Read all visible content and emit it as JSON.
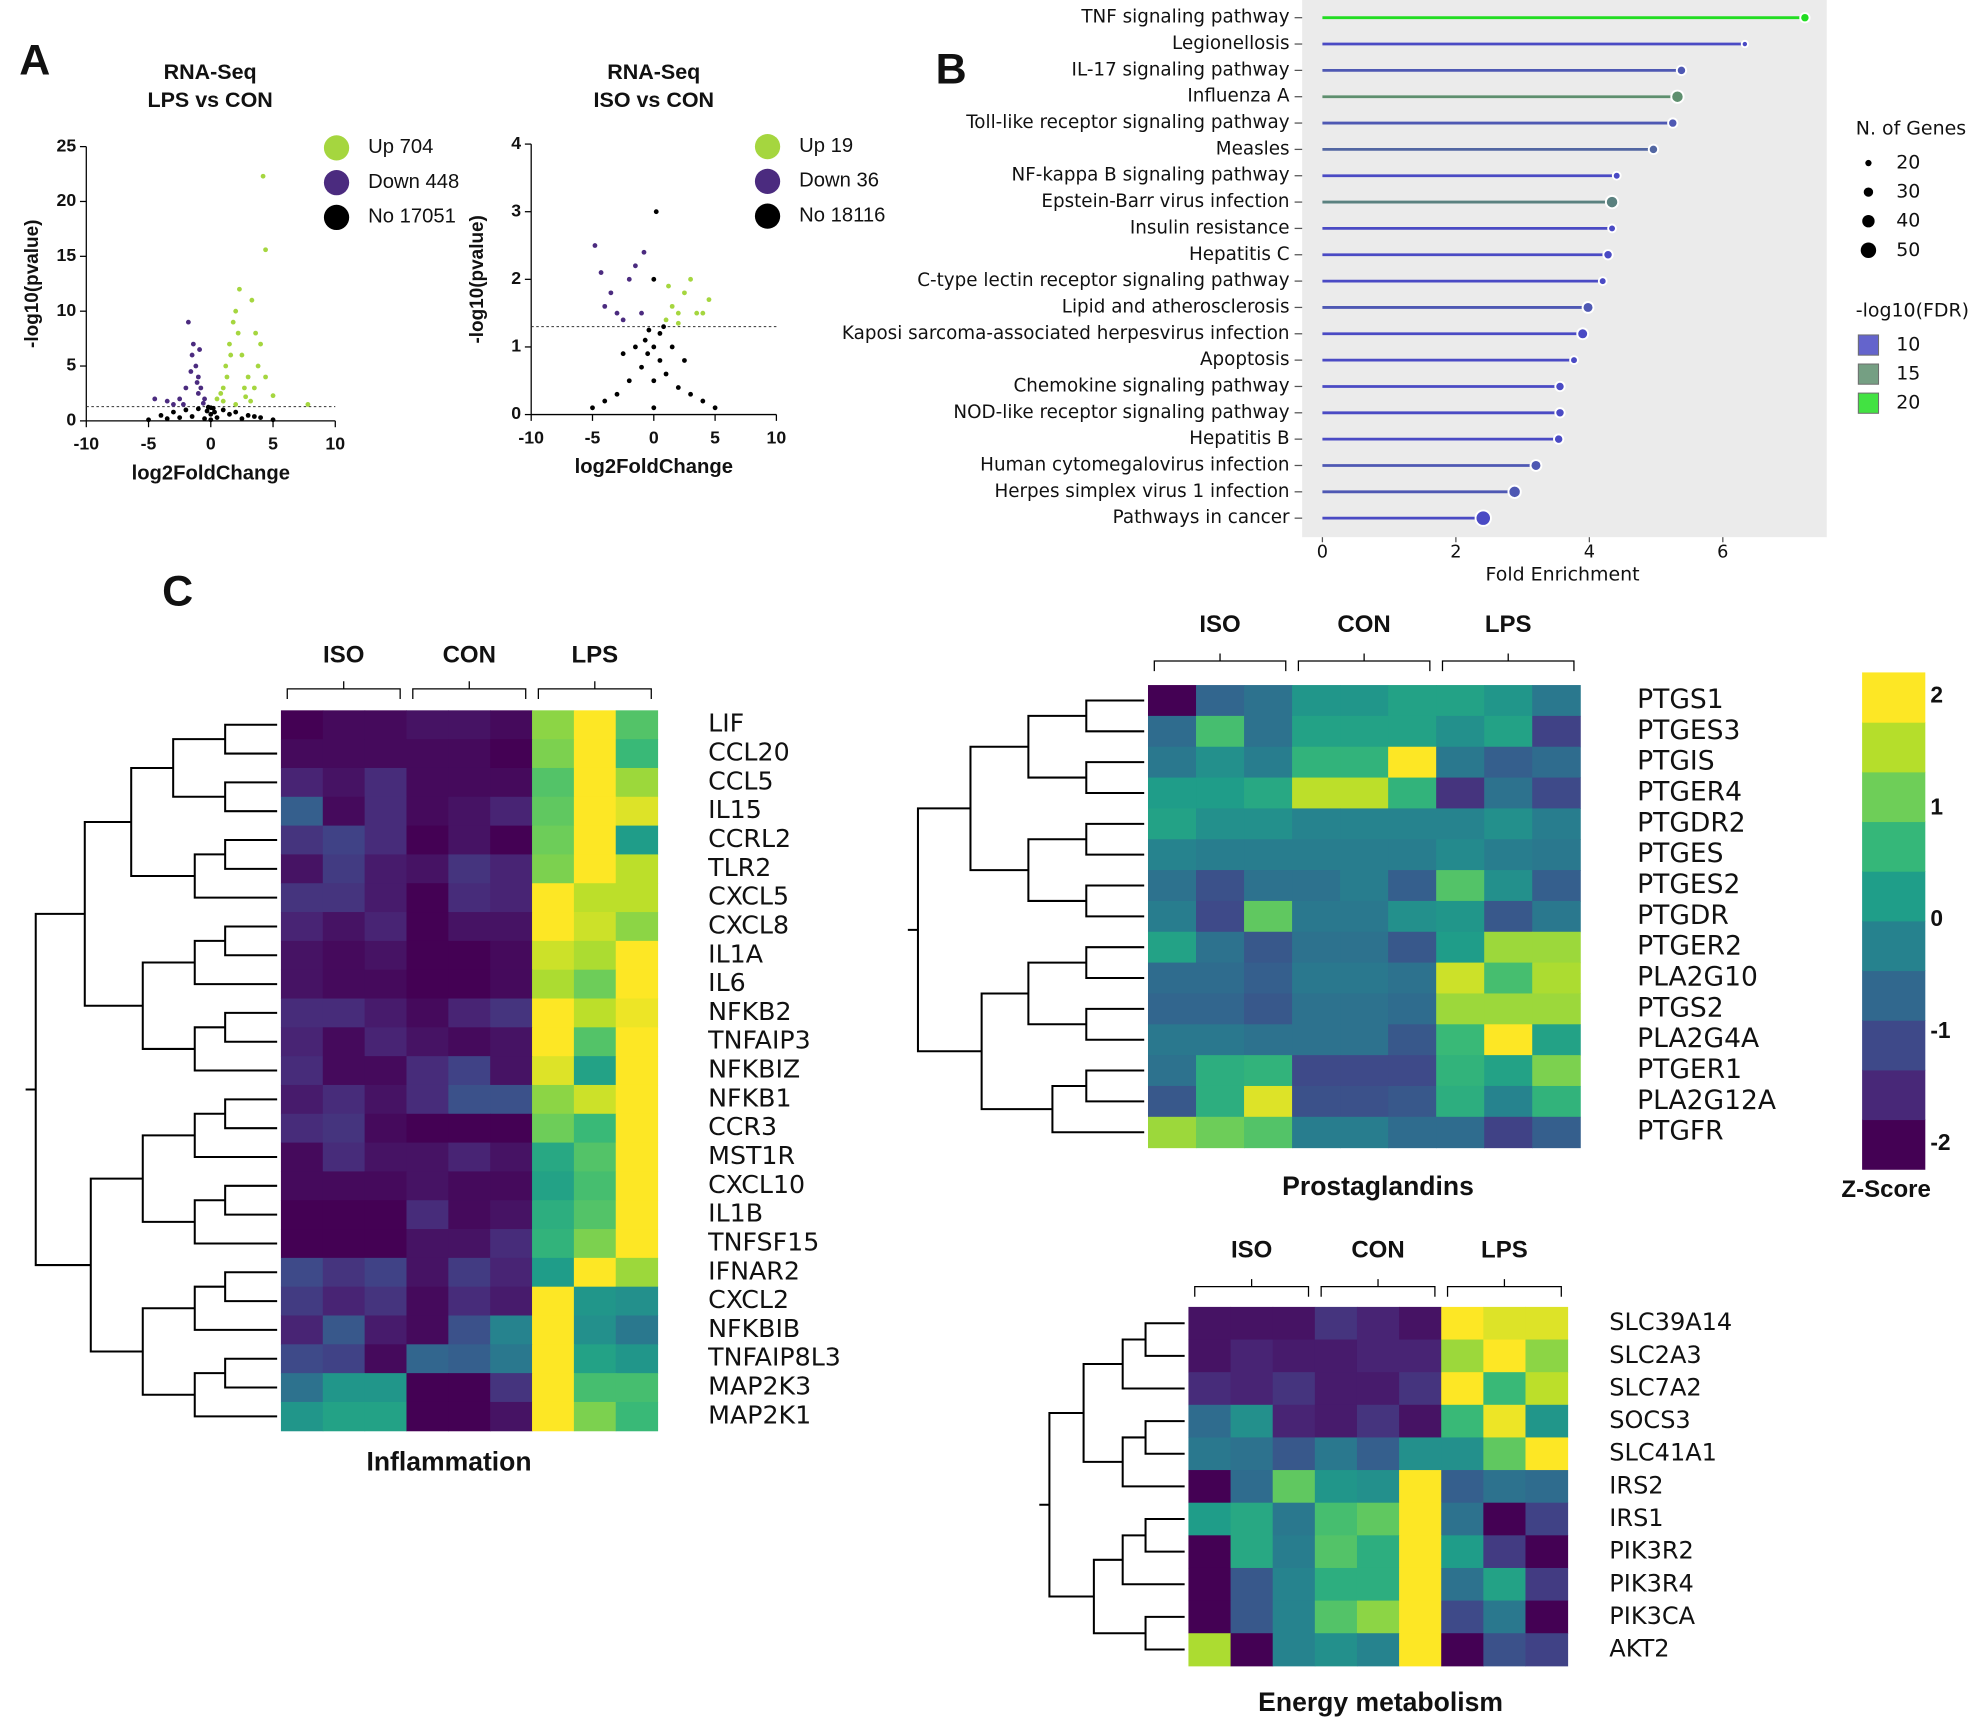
{
  "chart_data": [
    {
      "type": "scatter",
      "panel": "A",
      "title": "RNA-Seq",
      "subtitle": "LPS vs CON",
      "xlabel": "log2FoldChange",
      "ylabel": "-log10(pvalue)",
      "xlim": [
        -10,
        10
      ],
      "xticks": [
        -10,
        -5,
        0,
        5,
        10
      ],
      "ylim": [
        0,
        25
      ],
      "yticks": [
        0,
        5,
        10,
        15,
        20,
        25
      ],
      "hline": 1.3,
      "series": [
        {
          "name": "Up 704",
          "color": "#a5d63f",
          "x": [
            0.5,
            1,
            1.2,
            1.5,
            1.8,
            2,
            2.2,
            2.5,
            3,
            3.5,
            1,
            2,
            2.8,
            3.3,
            3.8,
            4,
            4.4,
            4.2,
            4.4,
            1.3,
            2.7,
            0.8,
            3.2,
            5,
            7.8,
            1.6,
            2.3,
            3.6
          ],
          "y": [
            2,
            3,
            5,
            7,
            9,
            10,
            8,
            6,
            4,
            3,
            1.8,
            1.5,
            2.2,
            11,
            5,
            7,
            4,
            22.3,
            15.6,
            4,
            3,
            2.5,
            1.8,
            2.3,
            1.5,
            6,
            12,
            8
          ]
        },
        {
          "name": "Down 448",
          "color": "#4b2b7f",
          "x": [
            -0.5,
            -0.8,
            -1,
            -1.2,
            -1.5,
            -1.8,
            -1.4,
            -1,
            -2,
            -2.5,
            -3,
            -3.5,
            -4.5,
            -0.6,
            -1.6,
            -0.9,
            -2.2,
            -1.1
          ],
          "y": [
            2,
            3,
            4,
            5,
            6,
            9,
            7,
            2.5,
            3,
            2,
            1.5,
            1.8,
            2,
            1.6,
            4.5,
            6.5,
            1.5,
            3.5
          ]
        },
        {
          "name": "No 17051",
          "color": "#000000",
          "x": [
            -4,
            -3,
            -2,
            -1,
            0,
            1,
            2,
            3,
            4,
            -0.5,
            0.5,
            -1.5,
            1.5,
            -2.5,
            2.5,
            0,
            -0.3,
            0.3,
            -3.5,
            3.5,
            0,
            -5,
            5,
            -0.2,
            0.2
          ],
          "y": [
            0.5,
            0.8,
            1,
            1.1,
            1.2,
            1,
            0.8,
            0.5,
            0.3,
            0.2,
            0.3,
            0.4,
            0.6,
            0.3,
            0.2,
            0.6,
            0.9,
            0.8,
            0.2,
            0.4,
            0.1,
            0.1,
            0.1,
            1.25,
            1.15
          ]
        }
      ]
    },
    {
      "type": "scatter",
      "title": "RNA-Seq",
      "subtitle": "ISO vs CON",
      "xlabel": "log2FoldChange",
      "ylabel": "-log10(pvalue)",
      "xlim": [
        -10,
        10
      ],
      "xticks": [
        -10,
        -5,
        0,
        5,
        10
      ],
      "ylim": [
        0,
        4
      ],
      "yticks": [
        0,
        1,
        2,
        3,
        4
      ],
      "hline": 1.3,
      "series": [
        {
          "name": "Up 19",
          "color": "#a5d63f",
          "x": [
            1,
            1.5,
            2,
            2.5,
            3,
            3.5,
            4,
            4.5,
            2,
            1.2
          ],
          "y": [
            1.4,
            1.6,
            1.5,
            1.8,
            2,
            1.5,
            1.5,
            1.7,
            1.35,
            1.9
          ]
        },
        {
          "name": "Down 36",
          "color": "#4b2b7f",
          "x": [
            -4.8,
            -4,
            -3.5,
            -3,
            -2,
            -1.5,
            -1,
            -2.5,
            -0.8,
            -4.3
          ],
          "y": [
            2.5,
            1.6,
            1.8,
            1.5,
            2,
            2.2,
            1.5,
            1.4,
            2.4,
            2.1
          ]
        },
        {
          "name": "No 18116",
          "color": "#000000",
          "x": [
            0,
            0,
            0,
            0.5,
            -0.5,
            1,
            -1,
            2,
            -2,
            3,
            -3,
            0.2,
            0.5,
            -0.4,
            1.5,
            -1.5,
            4,
            -4,
            2.5,
            -2.5,
            0,
            -0.7,
            0.8,
            -5,
            5
          ],
          "y": [
            0.1,
            0.5,
            1,
            0.8,
            0.9,
            0.6,
            0.7,
            0.4,
            0.5,
            0.3,
            0.3,
            3,
            1.2,
            1.25,
            1,
            1,
            0.2,
            0.2,
            0.8,
            0.9,
            2,
            1.1,
            1.3,
            0.1,
            0.1
          ]
        }
      ]
    },
    {
      "type": "lollipop",
      "panel": "B",
      "xlabel": "Fold Enrichment",
      "xlim": [
        0,
        7.5
      ],
      "xticks": [
        0,
        2,
        4,
        6
      ],
      "categories": [
        "TNF signaling pathway",
        "Legionellosis",
        "IL-17 signaling pathway",
        "Influenza A",
        "Toll-like receptor signaling pathway",
        "Measles",
        "NF-kappa B signaling pathway",
        "Epstein-Barr virus infection",
        "Insulin resistance",
        "Hepatitis C",
        "C-type lectin receptor signaling pathway",
        "Lipid and atherosclerosis",
        "Kaposi sarcoma-associated herpesvirus infection",
        "Apoptosis",
        "Chemokine signaling pathway",
        "NOD-like receptor signaling pathway",
        "Hepatitis B",
        "Human cytomegalovirus infection",
        "Herpes simplex virus 1 infection",
        "Pathways in cancer"
      ],
      "values": [
        7.23,
        6.33,
        5.38,
        5.32,
        5.25,
        4.96,
        4.41,
        4.34,
        4.34,
        4.28,
        4.2,
        3.98,
        3.9,
        3.77,
        3.56,
        3.56,
        3.54,
        3.2,
        2.88,
        2.41
      ],
      "sizes": [
        30,
        20,
        30,
        40,
        30,
        30,
        25,
        40,
        25,
        30,
        25,
        35,
        35,
        25,
        30,
        30,
        30,
        35,
        40,
        50
      ],
      "fdr": [
        20,
        10,
        11,
        15,
        11,
        12,
        10,
        14,
        10,
        10,
        10,
        11,
        10,
        10,
        10,
        10,
        10,
        11,
        11,
        10
      ],
      "size_legend": {
        "title": "N. of Genes",
        "values": [
          20,
          30,
          40,
          50
        ]
      },
      "color_legend": {
        "title": "-log10(FDR)",
        "values": [
          10,
          15,
          20
        ],
        "colors": [
          "#4a4ac4",
          "#5e8f6e",
          "#22dd22"
        ]
      }
    },
    {
      "type": "heatmap",
      "panel": "C",
      "title": "Inflammation",
      "groups": [
        "ISO",
        "CON",
        "LPS"
      ],
      "zlim": [
        -2,
        2
      ],
      "colors": [
        "#440154",
        "#482878",
        "#3e4989",
        "#31688e",
        "#26828e",
        "#1f9e89",
        "#35b779",
        "#6ece58",
        "#b5de2b",
        "#fde725"
      ],
      "rows": [
        "LIF",
        "CCL20",
        "CCL5",
        "IL15",
        "CCRL2",
        "TLR2",
        "CXCL5",
        "CXCL8",
        "IL1A",
        "IL6",
        "NFKB2",
        "TNFAIP3",
        "NFKBIZ",
        "NFKB1",
        "CCR3",
        "MST1R",
        "CXCL10",
        "IL1B",
        "TNFSF15",
        "IFNAR2",
        "CXCL2",
        "NFKBIB",
        "TNFAIP8L3",
        "MAP2K3",
        "MAP2K1"
      ],
      "values": [
        [
          -2,
          -1.9,
          -1.9,
          -1.8,
          -1.8,
          -1.9,
          1.3,
          2,
          0.9
        ],
        [
          -1.9,
          -1.9,
          -1.9,
          -1.9,
          -1.9,
          -2,
          1.2,
          2,
          0.7
        ],
        [
          -1.6,
          -1.8,
          -1.5,
          -1.9,
          -1.9,
          -1.9,
          0.9,
          2,
          1.4
        ],
        [
          -0.8,
          -1.9,
          -1.5,
          -1.9,
          -1.8,
          -1.6,
          1,
          2,
          1.8
        ],
        [
          -1.4,
          -1.2,
          -1.5,
          -2,
          -1.8,
          -2,
          1.1,
          2,
          0.2
        ],
        [
          -1.8,
          -1.3,
          -1.7,
          -1.8,
          -1.4,
          -1.6,
          1.2,
          2,
          1.6
        ],
        [
          -1.4,
          -1.4,
          -1.7,
          -2,
          -1.5,
          -1.6,
          2,
          1.6,
          1.6
        ],
        [
          -1.6,
          -1.8,
          -1.6,
          -2,
          -1.8,
          -1.8,
          2,
          1.7,
          1.3
        ],
        [
          -1.8,
          -1.9,
          -1.8,
          -2,
          -2,
          -1.9,
          1.7,
          1.5,
          2
        ],
        [
          -1.8,
          -1.9,
          -1.9,
          -2,
          -2,
          -1.9,
          1.5,
          1.1,
          2
        ],
        [
          -1.5,
          -1.5,
          -1.7,
          -1.9,
          -1.6,
          -1.4,
          2,
          1.6,
          1.9
        ],
        [
          -1.6,
          -1.9,
          -1.6,
          -1.8,
          -1.9,
          -1.8,
          2,
          0.9,
          2
        ],
        [
          -1.5,
          -1.9,
          -1.9,
          -1.5,
          -1.2,
          -1.8,
          1.8,
          0.3,
          2
        ],
        [
          -1.7,
          -1.5,
          -1.8,
          -1.5,
          -1,
          -1,
          1.3,
          1.7,
          2
        ],
        [
          -1.5,
          -1.4,
          -1.9,
          -2,
          -2,
          -2,
          1.1,
          0.7,
          2
        ],
        [
          -1.9,
          -1.5,
          -1.8,
          -1.8,
          -1.6,
          -1.8,
          0.4,
          0.9,
          2
        ],
        [
          -1.9,
          -1.9,
          -1.9,
          -1.8,
          -1.9,
          -1.9,
          0.3,
          0.8,
          2
        ],
        [
          -2,
          -2,
          -2,
          -1.5,
          -1.9,
          -1.8,
          0.5,
          0.9,
          2
        ],
        [
          -2,
          -2,
          -2,
          -1.8,
          -1.8,
          -1.5,
          0.6,
          1.2,
          2
        ],
        [
          -1.1,
          -1.4,
          -1.2,
          -1.8,
          -1.3,
          -1.6,
          0.2,
          2,
          1.4
        ],
        [
          -1.3,
          -1.6,
          -1.4,
          -1.9,
          -1.5,
          -1.7,
          2,
          0.1,
          0
        ],
        [
          -1.6,
          -0.9,
          -1.7,
          -1.9,
          -1,
          -0.2,
          2,
          0,
          -0.4
        ],
        [
          -1.1,
          -1.2,
          -1.9,
          -0.7,
          -0.8,
          -0.4,
          2,
          0.3,
          0.1
        ],
        [
          -0.5,
          0.1,
          0.1,
          -2,
          -2,
          -1.4,
          2,
          0.8,
          0.8
        ],
        [
          0.1,
          0.3,
          0.3,
          -2,
          -2,
          -1.8,
          2,
          1.2,
          0.7
        ]
      ]
    },
    {
      "type": "heatmap",
      "title": "Prostaglandins",
      "groups": [
        "ISO",
        "CON",
        "LPS"
      ],
      "zlim": [
        -2,
        2
      ],
      "colors": [
        "#440154",
        "#482878",
        "#3e4989",
        "#31688e",
        "#26828e",
        "#1f9e89",
        "#35b779",
        "#6ece58",
        "#b5de2b",
        "#fde725"
      ],
      "rows": [
        "PTGS1",
        "PTGES3",
        "PTGIS",
        "PTGER4",
        "PTGDR2",
        "PTGES",
        "PTGES2",
        "PTGDR",
        "PTGER2",
        "PLA2G10",
        "PTGS2",
        "PLA2G4A",
        "PTGER1",
        "PLA2G12A",
        "PTGFR"
      ],
      "values": [
        [
          -2,
          -0.7,
          -0.5,
          0.1,
          0.1,
          0.3,
          0.3,
          0.1,
          -0.4
        ],
        [
          -0.6,
          0.8,
          -0.5,
          0.3,
          0.3,
          0.3,
          0,
          0.3,
          -1.2
        ],
        [
          -0.4,
          0,
          -0.3,
          0.6,
          0.6,
          2,
          -0.4,
          -0.8,
          -0.6
        ],
        [
          0.2,
          0.2,
          0.4,
          1.6,
          1.6,
          0.6,
          -1.4,
          -0.5,
          -1.1
        ],
        [
          0.3,
          0,
          0,
          -0.2,
          -0.2,
          -0.2,
          -0.2,
          0,
          -0.3
        ],
        [
          -0.2,
          -0.3,
          -0.3,
          -0.3,
          -0.3,
          -0.3,
          -0.1,
          -0.3,
          -0.4
        ],
        [
          -0.5,
          -1,
          -0.5,
          -0.5,
          -0.3,
          -0.8,
          0.9,
          0,
          -0.8
        ],
        [
          -0.3,
          -1.1,
          1,
          -0.4,
          -0.4,
          0,
          0.1,
          -0.9,
          -0.4
        ],
        [
          0.3,
          -0.5,
          -0.9,
          -0.5,
          -0.5,
          -0.9,
          0.2,
          1.4,
          1.4
        ],
        [
          -0.6,
          -0.6,
          -0.8,
          -0.4,
          -0.4,
          -0.5,
          1.7,
          0.8,
          1.5
        ],
        [
          -0.7,
          -0.7,
          -0.9,
          -0.5,
          -0.5,
          -0.6,
          1.4,
          1.4,
          1.4
        ],
        [
          -0.4,
          -0.4,
          -0.5,
          -0.5,
          -0.5,
          -0.9,
          0.7,
          2,
          0.3
        ],
        [
          -0.5,
          0.5,
          0.6,
          -1.1,
          -1.1,
          -1.1,
          0.6,
          0.3,
          1.2
        ],
        [
          -0.9,
          0.5,
          1.8,
          -1,
          -1,
          -0.9,
          0.5,
          -0.2,
          0.6
        ],
        [
          1.4,
          1.1,
          0.9,
          -0.3,
          -0.3,
          -0.6,
          -0.6,
          -1.2,
          -0.8
        ]
      ],
      "colorbar": {
        "title": "Z-Score",
        "ticks": [
          2,
          1,
          0,
          -1,
          -2
        ]
      }
    },
    {
      "type": "heatmap",
      "title": "Energy metabolism",
      "groups": [
        "ISO",
        "CON",
        "LPS"
      ],
      "zlim": [
        -2,
        2
      ],
      "colors": [
        "#440154",
        "#482878",
        "#3e4989",
        "#31688e",
        "#26828e",
        "#1f9e89",
        "#35b779",
        "#6ece58",
        "#b5de2b",
        "#fde725"
      ],
      "rows": [
        "SLC39A14",
        "SLC2A3",
        "SLC7A2",
        "SOCS3",
        "SLC41A1",
        "IRS2",
        "IRS1",
        "PIK3R2",
        "PIK3R4",
        "PIK3CA",
        "AKT2"
      ],
      "values": [
        [
          -1.8,
          -1.8,
          -1.8,
          -1.4,
          -1.6,
          -1.8,
          2,
          1.8,
          1.8
        ],
        [
          -1.8,
          -1.6,
          -1.7,
          -1.7,
          -1.6,
          -1.6,
          1.4,
          2,
          1.3
        ],
        [
          -1.5,
          -1.6,
          -1.4,
          -1.7,
          -1.7,
          -1.4,
          2,
          0.7,
          1.6
        ],
        [
          -0.6,
          0,
          -1.6,
          -1.7,
          -1.4,
          -1.8,
          0.7,
          1.9,
          0.1
        ],
        [
          -0.4,
          -0.5,
          -0.9,
          -0.4,
          -0.8,
          0,
          0,
          1,
          2
        ],
        [
          -2,
          -0.6,
          1,
          0.1,
          0,
          2,
          -0.8,
          -0.5,
          -0.6
        ],
        [
          0.2,
          0.4,
          -0.4,
          0.8,
          1,
          2,
          -0.5,
          -2,
          -1.2
        ],
        [
          -2,
          0.4,
          -0.3,
          0.9,
          0.5,
          2,
          0.2,
          -1.3,
          -2
        ],
        [
          -2,
          -0.9,
          -0.2,
          0.5,
          0.5,
          2,
          -0.5,
          0.3,
          -1.3
        ],
        [
          -2,
          -0.9,
          -0.2,
          0.9,
          1.3,
          2,
          -1.1,
          -0.4,
          -2
        ],
        [
          1.5,
          -2,
          -0.2,
          0,
          -0.2,
          2,
          -2,
          -1,
          -1.2
        ]
      ]
    }
  ]
}
